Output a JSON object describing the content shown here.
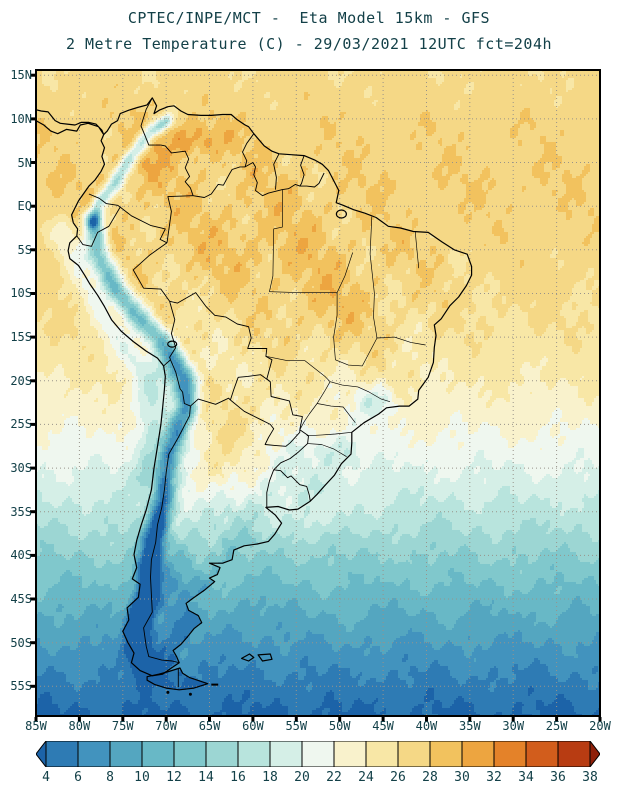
{
  "header": {
    "line1": "CPTEC/INPE/MCT -  Eta Model 15km - GFS",
    "line2": "2 Metre Temperature (C) - 29/03/2021 12UTC fct=204h"
  },
  "axes": {
    "lat_labels": [
      "15N",
      "10N",
      "5N",
      "EQ",
      "5S",
      "10S",
      "15S",
      "20S",
      "25S",
      "30S",
      "35S",
      "40S",
      "45S",
      "50S",
      "55S"
    ],
    "lat_values": [
      15,
      10,
      5,
      0,
      -5,
      -10,
      -15,
      -20,
      -25,
      -30,
      -35,
      -40,
      -45,
      -50,
      -55
    ],
    "lon_labels": [
      "85W",
      "80W",
      "75W",
      "70W",
      "65W",
      "60W",
      "55W",
      "50W",
      "45W",
      "40W",
      "35W",
      "30W",
      "25W",
      "20W"
    ],
    "lon_values": [
      -85,
      -80,
      -75,
      -70,
      -65,
      -60,
      -55,
      -50,
      -45,
      -40,
      -35,
      -30,
      -25,
      -20
    ]
  },
  "map": {
    "extent": {
      "lon_min": -85,
      "lon_max": -20,
      "lat_min": -58.4,
      "lat_max": 15.6
    }
  },
  "colorbar": {
    "unit": "C",
    "tick_values": [
      4,
      6,
      8,
      10,
      12,
      14,
      16,
      18,
      20,
      22,
      24,
      26,
      28,
      30,
      32,
      34,
      36,
      38
    ],
    "colors": [
      "#1c63a8",
      "#2e7bb4",
      "#4293be",
      "#54a6c0",
      "#68b8c6",
      "#80c8cc",
      "#9cd6d3",
      "#b8e4dd",
      "#d5efe7",
      "#eff7ef",
      "#f9f2cc",
      "#f8e7a6",
      "#f5d886",
      "#f2c25e",
      "#eda540",
      "#e48229",
      "#d25d1c",
      "#b83c12",
      "#8f2009"
    ]
  },
  "chart_data": {
    "type": "heatmap",
    "title": "2 Metre Temperature (C)",
    "source": "CPTEC/INPE/MCT",
    "model": "Eta Model 15km",
    "boundary": "GFS",
    "valid": "29/03/2021 12UTC",
    "forecast": "fct=204h",
    "lon_range_deg": [
      -85,
      -20
    ],
    "lat_range_deg": [
      -58.4,
      15.6
    ],
    "scale_values_c": [
      4,
      6,
      8,
      10,
      12,
      14,
      16,
      18,
      20,
      22,
      24,
      26,
      28,
      30,
      32,
      34,
      36,
      38
    ]
  }
}
